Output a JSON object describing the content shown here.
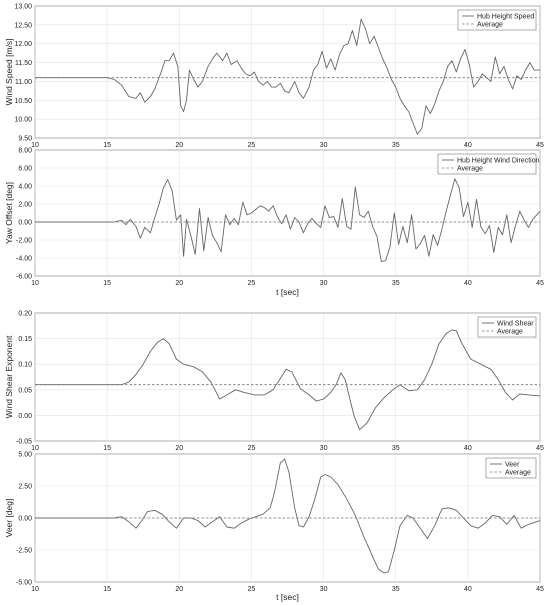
{
  "chart_data": [
    {
      "type": "line",
      "ylabel": "Wind Speed [m/s]",
      "xlabel": "",
      "xlim": [
        10,
        45
      ],
      "ylim": [
        9.5,
        13.0
      ],
      "xticks": [
        10,
        15,
        20,
        25,
        30,
        35,
        40,
        45
      ],
      "xtick_labels": [
        "10",
        "15",
        "20",
        "25",
        "30",
        "35",
        "40",
        "45"
      ],
      "yticks": [
        9.5,
        10.0,
        10.5,
        11.0,
        11.5,
        12.0,
        12.5,
        13.0
      ],
      "ytick_labels": [
        "9.50",
        "10.00",
        "10.50",
        "11.00",
        "11.50",
        "12.00",
        "12.50",
        "13.00"
      ],
      "grid": true,
      "legend_position": "top-right",
      "series": [
        {
          "name": "Hub Height Speed",
          "style": "solid",
          "x": [
            10,
            15,
            15.5,
            16,
            16.5,
            17,
            17.3,
            17.6,
            18,
            18.3,
            18.7,
            19,
            19.3,
            19.6,
            19.9,
            20.1,
            20.3,
            20.5,
            20.7,
            21,
            21.3,
            21.6,
            22,
            22.3,
            22.6,
            23,
            23.3,
            23.6,
            24,
            24.3,
            24.6,
            24.9,
            25.2,
            25.5,
            25.8,
            26.1,
            26.4,
            26.7,
            27,
            27.3,
            27.6,
            28,
            28.3,
            28.6,
            29,
            29.3,
            29.6,
            29.9,
            30.2,
            30.5,
            30.8,
            31.1,
            31.4,
            31.7,
            32,
            32.3,
            32.6,
            32.9,
            33.2,
            33.5,
            33.8,
            34.1,
            34.4,
            34.7,
            35,
            35.3,
            35.6,
            35.9,
            36.2,
            36.5,
            36.8,
            37.1,
            37.4,
            37.7,
            38,
            38.3,
            38.6,
            38.9,
            39.2,
            39.5,
            39.8,
            40.1,
            40.4,
            40.7,
            41,
            41.3,
            41.6,
            41.9,
            42.2,
            42.5,
            42.8,
            43.1,
            43.4,
            43.7,
            44,
            44.3,
            44.6,
            45
          ],
          "y": [
            11.1,
            11.1,
            11.05,
            10.9,
            10.6,
            10.55,
            10.7,
            10.45,
            10.6,
            10.8,
            11.2,
            11.55,
            11.55,
            11.75,
            11.4,
            10.35,
            10.2,
            10.5,
            11.3,
            11.05,
            10.85,
            11.0,
            11.4,
            11.6,
            11.75,
            11.55,
            11.75,
            11.45,
            11.55,
            11.35,
            11.2,
            11.15,
            11.25,
            11.0,
            10.9,
            11.0,
            10.85,
            10.85,
            10.95,
            10.75,
            10.7,
            11.0,
            10.7,
            10.55,
            10.85,
            11.3,
            11.45,
            11.8,
            11.35,
            11.6,
            11.3,
            11.7,
            11.95,
            12.0,
            12.35,
            11.95,
            12.65,
            12.4,
            12.0,
            12.2,
            11.9,
            11.6,
            11.35,
            11.05,
            10.85,
            10.55,
            10.35,
            10.2,
            9.9,
            9.6,
            9.75,
            10.35,
            10.15,
            10.4,
            10.75,
            11.0,
            11.4,
            11.55,
            11.25,
            11.6,
            11.85,
            11.45,
            10.85,
            11.0,
            11.2,
            11.1,
            11.0,
            11.65,
            11.2,
            11.4,
            11.05,
            10.8,
            11.15,
            11.05,
            11.3,
            11.5,
            11.3,
            11.3
          ]
        },
        {
          "name": "Average",
          "style": "dashed",
          "x": [
            10,
            45
          ],
          "y": [
            11.1,
            11.1
          ]
        }
      ]
    },
    {
      "type": "line",
      "ylabel": "Yaw Offset [deg]",
      "xlabel": "t [sec]",
      "xlim": [
        10,
        45
      ],
      "ylim": [
        -6,
        8
      ],
      "xticks": [
        10,
        15,
        20,
        25,
        30,
        35,
        40,
        45
      ],
      "xtick_labels": [
        "10",
        "15",
        "20",
        "25",
        "30",
        "35",
        "40",
        "45"
      ],
      "yticks": [
        -6,
        -4,
        -2,
        0,
        2,
        4,
        6,
        8
      ],
      "ytick_labels": [
        "-6.00",
        "-4.00",
        "-2.00",
        "0.00",
        "2.00",
        "4.00",
        "6.00",
        "8.00"
      ],
      "grid": true,
      "legend_position": "top-right",
      "series": [
        {
          "name": "Hub Height Wind Direction",
          "style": "solid",
          "x": [
            10,
            15.5,
            16,
            16.3,
            16.6,
            17,
            17.3,
            17.6,
            18,
            18.3,
            18.6,
            18.9,
            19.2,
            19.5,
            19.8,
            20.1,
            20.3,
            20.5,
            20.8,
            21.1,
            21.4,
            21.7,
            22,
            22.3,
            22.6,
            22.9,
            23.2,
            23.5,
            23.8,
            24.1,
            24.4,
            24.7,
            25,
            25.3,
            25.6,
            25.9,
            26.2,
            26.5,
            26.8,
            27.1,
            27.4,
            27.7,
            28,
            28.3,
            28.6,
            28.9,
            29.2,
            29.5,
            29.8,
            30.1,
            30.4,
            30.7,
            31,
            31.3,
            31.6,
            31.9,
            32.2,
            32.5,
            32.8,
            33.1,
            33.4,
            33.7,
            34,
            34.3,
            34.6,
            34.9,
            35.2,
            35.5,
            35.8,
            36.1,
            36.4,
            36.7,
            37,
            37.3,
            37.6,
            37.9,
            38.2,
            38.5,
            38.8,
            39.1,
            39.4,
            39.7,
            40,
            40.3,
            40.6,
            40.9,
            41.2,
            41.5,
            41.8,
            42.1,
            42.4,
            42.7,
            43,
            43.3,
            43.6,
            43.9,
            44.2,
            44.5,
            45
          ],
          "y": [
            0.0,
            0.0,
            0.2,
            -0.3,
            0.3,
            -0.5,
            -1.8,
            -0.6,
            -1.2,
            0.5,
            2.0,
            3.8,
            4.7,
            3.5,
            0.2,
            0.8,
            -3.8,
            0.3,
            -1.5,
            -3.6,
            1.5,
            -3.2,
            0.5,
            -1.5,
            -2.3,
            -3.3,
            0.8,
            -0.3,
            0.4,
            -0.3,
            2.2,
            0.8,
            1.0,
            1.4,
            1.8,
            1.6,
            1.2,
            1.8,
            0.6,
            -0.2,
            0.8,
            -0.8,
            0.5,
            0.0,
            -1.2,
            -0.2,
            0.4,
            -0.2,
            -0.6,
            1.8,
            0.5,
            0.6,
            -0.6,
            2.6,
            -0.5,
            -0.8,
            3.9,
            0.8,
            0.5,
            1.2,
            -0.5,
            -1.6,
            -4.4,
            -4.3,
            -2.8,
            1.0,
            -2.5,
            -0.5,
            -2.3,
            0.8,
            -3.0,
            -2.4,
            -1.5,
            -3.8,
            -1.4,
            -2.6,
            -0.8,
            1.2,
            3.0,
            4.8,
            3.8,
            0.6,
            2.2,
            -0.6,
            2.5,
            -0.5,
            -1.3,
            -0.4,
            -3.4,
            -0.6,
            -1.4,
            0.8,
            -2.3,
            -0.4,
            1.2,
            0.2,
            -0.6,
            0.3,
            1.2
          ]
        },
        {
          "name": "Average",
          "style": "dashed",
          "x": [
            10,
            45
          ],
          "y": [
            0.0,
            0.0
          ]
        }
      ]
    },
    {
      "type": "line",
      "ylabel": "Wind Shear Exponent",
      "xlabel": "",
      "xlim": [
        10,
        45
      ],
      "ylim": [
        -0.05,
        0.2
      ],
      "xticks": [
        10,
        15,
        20,
        25,
        30,
        35,
        40,
        45
      ],
      "xtick_labels": [
        "10",
        "15",
        "20",
        "25",
        "30",
        "35",
        "40",
        "45"
      ],
      "yticks": [
        -0.05,
        0.0,
        0.05,
        0.1,
        0.15,
        0.2
      ],
      "ytick_labels": [
        "-0.05",
        "0.00",
        "0.05",
        "0.10",
        "0.15",
        "0.20"
      ],
      "grid": true,
      "legend_position": "top-right",
      "series": [
        {
          "name": "Wind Shear",
          "style": "solid",
          "x": [
            10,
            15,
            16,
            16.5,
            17,
            17.5,
            18,
            18.5,
            18.9,
            19.3,
            19.8,
            20.3,
            21,
            21.6,
            22.2,
            22.8,
            23.3,
            23.9,
            24.5,
            25.2,
            25.9,
            26.5,
            27,
            27.4,
            27.8,
            28.4,
            29,
            29.5,
            30,
            30.5,
            30.9,
            31.2,
            31.5,
            31.8,
            32.1,
            32.5,
            33,
            33.6,
            34.2,
            34.8,
            35.3,
            35.9,
            36.5,
            37,
            37.5,
            38,
            38.5,
            38.9,
            39.2,
            39.6,
            40.2,
            40.9,
            41.6,
            42.1,
            42.6,
            43.1,
            43.6,
            44.2,
            45
          ],
          "y": [
            0.06,
            0.06,
            0.06,
            0.065,
            0.08,
            0.1,
            0.125,
            0.143,
            0.15,
            0.14,
            0.11,
            0.1,
            0.095,
            0.085,
            0.065,
            0.032,
            0.04,
            0.05,
            0.045,
            0.04,
            0.04,
            0.05,
            0.072,
            0.09,
            0.085,
            0.052,
            0.04,
            0.028,
            0.032,
            0.045,
            0.062,
            0.083,
            0.07,
            0.035,
            0.0,
            -0.028,
            -0.015,
            0.015,
            0.035,
            0.05,
            0.06,
            0.048,
            0.05,
            0.07,
            0.1,
            0.14,
            0.16,
            0.167,
            0.165,
            0.14,
            0.11,
            0.1,
            0.09,
            0.07,
            0.045,
            0.03,
            0.042,
            0.04,
            0.038
          ]
        },
        {
          "name": "Average",
          "style": "dashed",
          "x": [
            10,
            45
          ],
          "y": [
            0.06,
            0.06
          ]
        }
      ]
    },
    {
      "type": "line",
      "ylabel": "Veer [deg]",
      "xlabel": "t [sec]",
      "xlim": [
        10,
        45
      ],
      "ylim": [
        -5,
        5
      ],
      "xticks": [
        10,
        15,
        20,
        25,
        30,
        35,
        40,
        45
      ],
      "xtick_labels": [
        "10",
        "15",
        "20",
        "25",
        "30",
        "35",
        "40",
        "45"
      ],
      "yticks": [
        -5,
        -2.5,
        0,
        2.5,
        5
      ],
      "ytick_labels": [
        "-5.00",
        "-2.50",
        "0.00",
        "2.50",
        "5.00"
      ],
      "grid": true,
      "legend_position": "top-right",
      "series": [
        {
          "name": "Veer",
          "style": "solid",
          "x": [
            10,
            15.5,
            16,
            16.5,
            17,
            17.4,
            17.8,
            18.3,
            18.8,
            19.3,
            19.8,
            20.3,
            20.8,
            21.3,
            21.8,
            22.3,
            22.8,
            23.3,
            23.8,
            24.3,
            24.8,
            25.3,
            25.8,
            26.3,
            26.6,
            27,
            27.3,
            27.6,
            28,
            28.3,
            28.6,
            29,
            29.4,
            29.8,
            30.1,
            30.5,
            31,
            31.6,
            32.2,
            32.8,
            33.4,
            33.8,
            34.2,
            34.5,
            34.9,
            35.3,
            35.8,
            36.2,
            36.7,
            37.2,
            37.7,
            38.2,
            38.7,
            39.2,
            39.7,
            40.2,
            40.7,
            41.2,
            41.7,
            42.2,
            42.7,
            43.2,
            43.7,
            44.2,
            45
          ],
          "y": [
            0.0,
            0.0,
            0.1,
            -0.3,
            -0.8,
            -0.2,
            0.5,
            0.6,
            0.3,
            -0.3,
            -0.8,
            0.0,
            0.0,
            -0.2,
            -0.7,
            -0.3,
            0.1,
            -0.7,
            -0.8,
            -0.4,
            -0.1,
            0.1,
            0.3,
            0.8,
            2.0,
            4.3,
            4.6,
            3.6,
            0.8,
            -0.6,
            -0.7,
            0.1,
            1.5,
            3.2,
            3.4,
            3.2,
            2.6,
            1.5,
            0.2,
            -1.5,
            -3.0,
            -4.0,
            -4.3,
            -4.2,
            -2.5,
            -0.6,
            0.2,
            0.0,
            -0.8,
            -1.6,
            -0.6,
            0.7,
            0.8,
            0.6,
            0.0,
            -0.6,
            -0.8,
            -0.4,
            0.2,
            0.1,
            -0.5,
            0.2,
            -0.8,
            -0.5,
            -0.2
          ]
        },
        {
          "name": "Average",
          "style": "dashed",
          "x": [
            10,
            45
          ],
          "y": [
            0.0,
            0.0
          ]
        }
      ]
    }
  ]
}
